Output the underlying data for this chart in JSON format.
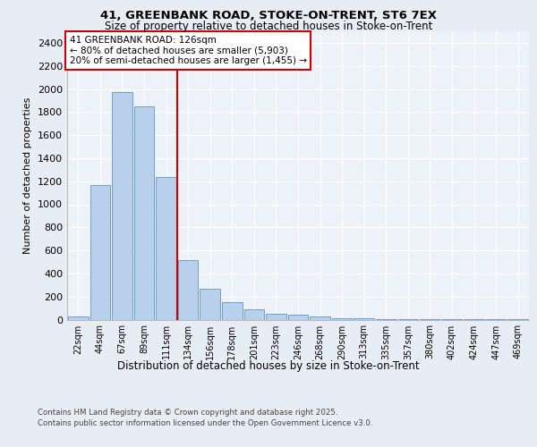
{
  "title_line1": "41, GREENBANK ROAD, STOKE-ON-TRENT, ST6 7EX",
  "title_line2": "Size of property relative to detached houses in Stoke-on-Trent",
  "xlabel": "Distribution of detached houses by size in Stoke-on-Trent",
  "ylabel": "Number of detached properties",
  "categories": [
    "22sqm",
    "44sqm",
    "67sqm",
    "89sqm",
    "111sqm",
    "134sqm",
    "156sqm",
    "178sqm",
    "201sqm",
    "223sqm",
    "246sqm",
    "268sqm",
    "290sqm",
    "313sqm",
    "335sqm",
    "357sqm",
    "380sqm",
    "402sqm",
    "424sqm",
    "447sqm",
    "469sqm"
  ],
  "values": [
    28,
    1170,
    1970,
    1850,
    1240,
    515,
    270,
    155,
    90,
    48,
    40,
    25,
    15,
    10,
    5,
    5,
    2,
    2,
    1,
    1,
    1
  ],
  "bar_color": "#b8d0eb",
  "bar_edge_color": "#6a9fd0",
  "vline_x": 4.5,
  "vline_color": "#cc0000",
  "annotation_title": "41 GREENBANK ROAD: 126sqm",
  "annotation_line1": "← 80% of detached houses are smaller (5,903)",
  "annotation_line2": "20% of semi-detached houses are larger (1,455) →",
  "ann_edge_color": "#cc0000",
  "ylim": [
    0,
    2500
  ],
  "yticks": [
    0,
    200,
    400,
    600,
    800,
    1000,
    1200,
    1400,
    1600,
    1800,
    2000,
    2200,
    2400
  ],
  "footnote_line1": "Contains HM Land Registry data © Crown copyright and database right 2025.",
  "footnote_line2": "Contains public sector information licensed under the Open Government Licence v3.0.",
  "bg_color": "#e8edf5",
  "plot_bg_color": "#edf1f8",
  "grid_color": "#ffffff"
}
